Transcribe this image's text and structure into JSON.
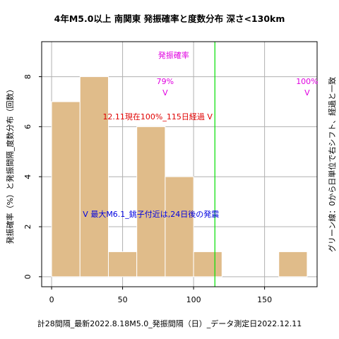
{
  "chart_data": {
    "type": "bar",
    "title": "4年M5.0以上 南関東 発振確率と度数分布 深さ<130km",
    "xlabel": "計28間隔_最新2022.8.18M5.0_発振間隔（日）_データ測定日2022.12.11",
    "ylabel": "発振確率（%）と発振間隔_度数分布（回数）",
    "ylabel_right": "グリーン線：0から日単位で右シフト、経過と一致",
    "xlim": [
      -7,
      187
    ],
    "ylim": [
      -0.4,
      9.4
    ],
    "xticks": [
      "0",
      "50",
      "100",
      "150"
    ],
    "xtick_values": [
      0,
      50,
      100,
      150
    ],
    "yticks": [
      "0",
      "2",
      "4",
      "6",
      "8"
    ],
    "ytick_values": [
      0,
      2,
      4,
      6,
      8
    ],
    "bin_width": 20,
    "bins": [
      {
        "start": 0,
        "end": 20,
        "count": 7
      },
      {
        "start": 20,
        "end": 40,
        "count": 8
      },
      {
        "start": 40,
        "end": 60,
        "count": 1
      },
      {
        "start": 60,
        "end": 80,
        "count": 6
      },
      {
        "start": 80,
        "end": 100,
        "count": 4
      },
      {
        "start": 100,
        "end": 120,
        "count": 1
      },
      {
        "start": 160,
        "end": 180,
        "count": 1
      }
    ],
    "green_line_x": 115,
    "grid": true,
    "annotations": [
      {
        "text": "発振確率",
        "x": 75,
        "y": 8.75,
        "color": "#e000e0",
        "anchor": "start"
      },
      {
        "text": "79%",
        "x": 80,
        "y": 7.7,
        "color": "#e000e0",
        "anchor": "middle"
      },
      {
        "text": "V",
        "x": 80,
        "y": 7.25,
        "color": "#e000e0",
        "anchor": "middle"
      },
      {
        "text": "100%",
        "x": 180,
        "y": 7.7,
        "color": "#e000e0",
        "anchor": "middle"
      },
      {
        "text": "V",
        "x": 180,
        "y": 7.25,
        "color": "#e000e0",
        "anchor": "middle"
      },
      {
        "text": "12.11現在100%_115日経過 V",
        "x": 36,
        "y": 6.3,
        "color": "#e00000",
        "anchor": "start"
      },
      {
        "text": "V 最大M6.1_銚子付近は,24日後の発震",
        "x": 22,
        "y": 2.4,
        "color": "#0000e0",
        "anchor": "start"
      }
    ],
    "colors": {
      "bar": "#e0bc8a",
      "bar_edge": "#ffffff",
      "green_line": "#00e000",
      "grid": "#b0b0b0"
    }
  }
}
